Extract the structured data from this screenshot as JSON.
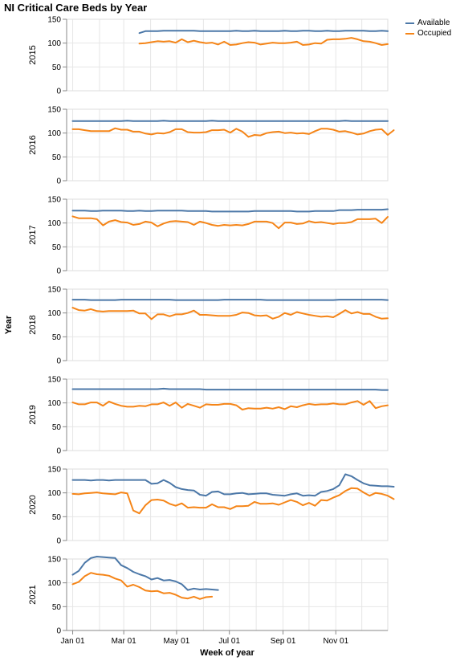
{
  "chart_data": {
    "type": "line",
    "title": "NI Critical Care Beds by Year",
    "xlabel": "Week of year",
    "facet_title": "Year",
    "ylim": [
      0,
      150
    ],
    "y_ticks": [
      0,
      50,
      100,
      150
    ],
    "xlim_days": [
      -7,
      364
    ],
    "x_ticks": [
      {
        "label": "Jan 01",
        "day": 0
      },
      {
        "label": "Mar 01",
        "day": 59
      },
      {
        "label": "May 01",
        "day": 120
      },
      {
        "label": "Jul 01",
        "day": 181
      },
      {
        "label": "Sep 01",
        "day": 243
      },
      {
        "label": "Nov 01",
        "day": 304
      }
    ],
    "legend": {
      "position": "top-right",
      "entries": [
        {
          "name": "Available",
          "color": "#4c78a8"
        },
        {
          "name": "Occupied",
          "color": "#f58518"
        }
      ]
    },
    "facets": [
      {
        "year": "2015",
        "series": [
          {
            "name": "Available",
            "color": "#4c78a8",
            "start_week": 11,
            "values": [
              121,
              125,
              125,
              125,
              126,
              126,
              126,
              126,
              126,
              126,
              125,
              125,
              125,
              125,
              125,
              125,
              126,
              125,
              125,
              126,
              125,
              125,
              125,
              125,
              126,
              125,
              125,
              126,
              126,
              125,
              125,
              126,
              125,
              125,
              126,
              126,
              126,
              126,
              125,
              125,
              126,
              125
            ]
          },
          {
            "name": "Occupied",
            "color": "#f58518",
            "start_week": 11,
            "values": [
              99,
              100,
              102,
              104,
              103,
              104,
              101,
              108,
              102,
              105,
              102,
              100,
              101,
              97,
              103,
              96,
              97,
              100,
              102,
              101,
              97,
              99,
              101,
              100,
              100,
              101,
              103,
              96,
              97,
              100,
              99,
              107,
              108,
              108,
              109,
              111,
              108,
              104,
              103,
              100,
              96,
              98
            ]
          }
        ]
      },
      {
        "year": "2016",
        "series": [
          {
            "name": "Available",
            "color": "#4c78a8",
            "start_week": 0,
            "values": [
              125,
              125,
              125,
              125,
              125,
              125,
              125,
              125,
              125,
              126,
              125,
              125,
              125,
              125,
              125,
              126,
              125,
              125,
              125,
              125,
              125,
              125,
              125,
              126,
              125,
              125,
              125,
              125,
              125,
              125,
              125,
              125,
              125,
              125,
              125,
              125,
              125,
              125,
              125,
              125,
              125,
              125,
              125,
              125,
              125,
              126,
              125,
              125,
              125,
              125,
              125,
              125,
              125
            ]
          },
          {
            "name": "Occupied",
            "color": "#f58518",
            "start_week": 0,
            "values": [
              108,
              108,
              106,
              104,
              104,
              104,
              104,
              110,
              107,
              107,
              103,
              103,
              99,
              97,
              100,
              99,
              102,
              108,
              108,
              102,
              101,
              101,
              102,
              106,
              106,
              107,
              101,
              109,
              103,
              92,
              96,
              95,
              100,
              102,
              103,
              100,
              101,
              99,
              100,
              98,
              104,
              109,
              109,
              107,
              103,
              104,
              101,
              97,
              99,
              104,
              107,
              108,
              96,
              106
            ]
          }
        ]
      },
      {
        "year": "2017",
        "series": [
          {
            "name": "Available",
            "color": "#4c78a8",
            "start_week": 0,
            "values": [
              126,
              126,
              126,
              125,
              125,
              126,
              126,
              126,
              126,
              125,
              125,
              126,
              125,
              125,
              126,
              126,
              126,
              126,
              126,
              125,
              125,
              125,
              125,
              124,
              124,
              124,
              124,
              124,
              124,
              124,
              125,
              125,
              125,
              125,
              125,
              125,
              125,
              124,
              124,
              124,
              125,
              125,
              125,
              125,
              127,
              127,
              127,
              128,
              128,
              128,
              128,
              128,
              129
            ]
          },
          {
            "name": "Occupied",
            "color": "#f58518",
            "start_week": 0,
            "values": [
              114,
              110,
              110,
              110,
              108,
              95,
              103,
              106,
              102,
              101,
              96,
              98,
              103,
              101,
              93,
              99,
              103,
              104,
              103,
              102,
              96,
              103,
              100,
              96,
              94,
              96,
              95,
              96,
              95,
              98,
              103,
              103,
              103,
              100,
              89,
              101,
              101,
              98,
              99,
              104,
              101,
              102,
              100,
              98,
              100,
              100,
              102,
              108,
              108,
              108,
              109,
              100,
              113
            ]
          }
        ]
      },
      {
        "year": "2018",
        "series": [
          {
            "name": "Available",
            "color": "#4c78a8",
            "start_week": 0,
            "values": [
              128,
              128,
              128,
              127,
              127,
              127,
              127,
              127,
              128,
              128,
              128,
              128,
              128,
              128,
              128,
              128,
              128,
              127,
              127,
              127,
              127,
              127,
              127,
              127,
              127,
              128,
              128,
              128,
              128,
              128,
              128,
              128,
              127,
              127,
              127,
              127,
              127,
              127,
              127,
              127,
              127,
              127,
              127,
              127,
              128,
              128,
              128,
              128,
              128,
              128,
              128,
              128,
              127
            ]
          },
          {
            "name": "Occupied",
            "color": "#f58518",
            "start_week": 0,
            "values": [
              111,
              106,
              105,
              108,
              104,
              103,
              104,
              104,
              104,
              104,
              105,
              99,
              99,
              87,
              97,
              97,
              93,
              97,
              97,
              100,
              105,
              96,
              96,
              95,
              94,
              94,
              94,
              96,
              101,
              100,
              95,
              94,
              95,
              88,
              92,
              100,
              96,
              102,
              99,
              96,
              94,
              92,
              93,
              91,
              98,
              106,
              99,
              102,
              98,
              98,
              92,
              88,
              89
            ]
          }
        ]
      },
      {
        "year": "2019",
        "series": [
          {
            "name": "Available",
            "color": "#4c78a8",
            "start_week": 0,
            "values": [
              129,
              129,
              129,
              129,
              129,
              129,
              129,
              129,
              129,
              129,
              129,
              129,
              129,
              129,
              129,
              130,
              129,
              129,
              129,
              129,
              129,
              129,
              128,
              128,
              128,
              128,
              128,
              128,
              128,
              128,
              128,
              128,
              128,
              128,
              128,
              128,
              128,
              128,
              128,
              128,
              128,
              128,
              128,
              128,
              128,
              128,
              128,
              128,
              128,
              128,
              128,
              127,
              127
            ]
          },
          {
            "name": "Occupied",
            "color": "#f58518",
            "start_week": 0,
            "values": [
              101,
              97,
              97,
              101,
              101,
              94,
              103,
              98,
              94,
              92,
              92,
              94,
              93,
              97,
              97,
              101,
              94,
              101,
              90,
              98,
              94,
              90,
              97,
              96,
              96,
              98,
              98,
              95,
              86,
              89,
              88,
              88,
              90,
              88,
              91,
              87,
              93,
              91,
              95,
              98,
              96,
              97,
              97,
              99,
              97,
              97,
              101,
              104,
              96,
              104,
              89,
              93,
              95
            ]
          }
        ]
      },
      {
        "year": "2020",
        "series": [
          {
            "name": "Available",
            "color": "#4c78a8",
            "start_week": 0,
            "values": [
              127,
              127,
              127,
              126,
              127,
              127,
              126,
              127,
              127,
              127,
              127,
              127,
              127,
              119,
              120,
              127,
              121,
              112,
              108,
              106,
              105,
              96,
              94,
              102,
              103,
              97,
              97,
              99,
              100,
              97,
              98,
              99,
              99,
              96,
              95,
              94,
              97,
              99,
              94,
              95,
              94,
              102,
              104,
              108,
              116,
              139,
              135,
              127,
              120,
              116,
              115,
              114,
              114,
              113
            ]
          },
          {
            "name": "Occupied",
            "color": "#f58518",
            "start_week": 0,
            "values": [
              98,
              97,
              99,
              100,
              101,
              99,
              98,
              97,
              101,
              99,
              63,
              57,
              74,
              85,
              86,
              84,
              77,
              73,
              78,
              69,
              70,
              69,
              69,
              76,
              70,
              70,
              66,
              72,
              72,
              73,
              81,
              77,
              77,
              78,
              75,
              80,
              85,
              81,
              74,
              79,
              73,
              85,
              84,
              90,
              95,
              104,
              110,
              109,
              101,
              94,
              100,
              98,
              94,
              87
            ]
          }
        ]
      },
      {
        "year": "2021",
        "series": [
          {
            "name": "Available",
            "color": "#4c78a8",
            "start_week": 0,
            "values": [
              117,
              125,
              142,
              152,
              155,
              154,
              153,
              152,
              137,
              131,
              123,
              118,
              114,
              107,
              110,
              105,
              106,
              103,
              97,
              85,
              88,
              86,
              87,
              86,
              85
            ]
          },
          {
            "name": "Occupied",
            "color": "#f58518",
            "start_week": 0,
            "values": [
              97,
              102,
              114,
              121,
              118,
              117,
              115,
              109,
              105,
              92,
              96,
              91,
              84,
              82,
              83,
              78,
              79,
              75,
              69,
              67,
              71,
              66,
              70,
              71
            ]
          }
        ]
      }
    ]
  }
}
